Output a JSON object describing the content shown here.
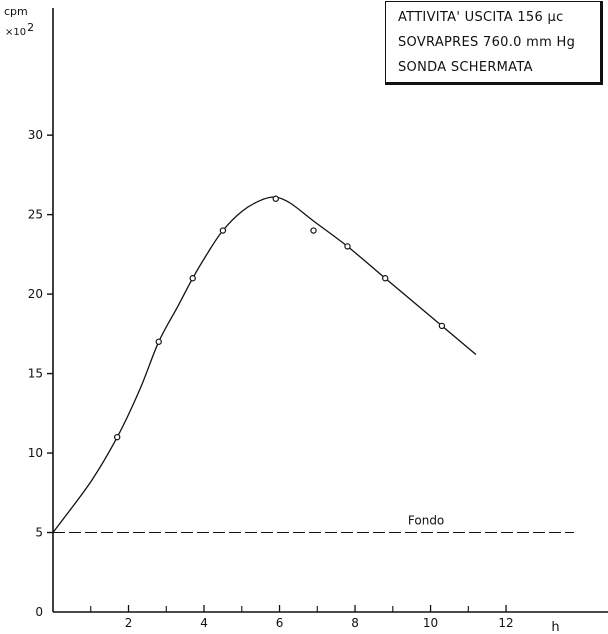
{
  "chart_data": {
    "type": "line",
    "ylabel": "cpm",
    "ylabel_scale": "×10",
    "ylabel_scale_exp": "2",
    "xlabel": "h",
    "xlim": [
      0,
      14.7
    ],
    "ylim": [
      0,
      38
    ],
    "x_ticks_labeled": [
      2,
      4,
      6,
      8,
      10,
      12
    ],
    "x_ticks_minor": [
      1,
      3,
      5,
      7,
      9,
      11
    ],
    "y_ticks": [
      0,
      5,
      10,
      15,
      20,
      25,
      30
    ],
    "grid": false,
    "legend_box": {
      "position": "top-right",
      "lines": [
        "ATTIVITA' USCITA 156 μc",
        "SOVRAPRES 760.0 mm Hg",
        "SONDA SCHERMATA"
      ]
    },
    "series": [
      {
        "style": "measured points (circles)",
        "x": [
          1.7,
          2.8,
          3.7,
          4.5,
          5.9,
          6.9,
          7.8,
          8.8,
          10.3
        ],
        "y": [
          11,
          17,
          21,
          24,
          26,
          24,
          23,
          21,
          18
        ]
      },
      {
        "style": "smooth fitted curve",
        "x": [
          0,
          1.0,
          1.7,
          2.3,
          2.8,
          3.3,
          3.7,
          4.1,
          4.5,
          5.0,
          5.5,
          5.9,
          6.3,
          6.9,
          7.8,
          8.8,
          9.5,
          10.3,
          11.2
        ],
        "y": [
          5,
          8.2,
          11,
          14,
          17,
          19.2,
          21,
          22.6,
          24,
          25.2,
          25.9,
          26.1,
          25.7,
          24.6,
          23,
          21,
          19.6,
          18,
          16.2
        ]
      },
      {
        "name": "Fondo",
        "style": "dashed horizontal line",
        "x": [
          0,
          13.8
        ],
        "y": [
          5,
          5
        ]
      }
    ]
  }
}
